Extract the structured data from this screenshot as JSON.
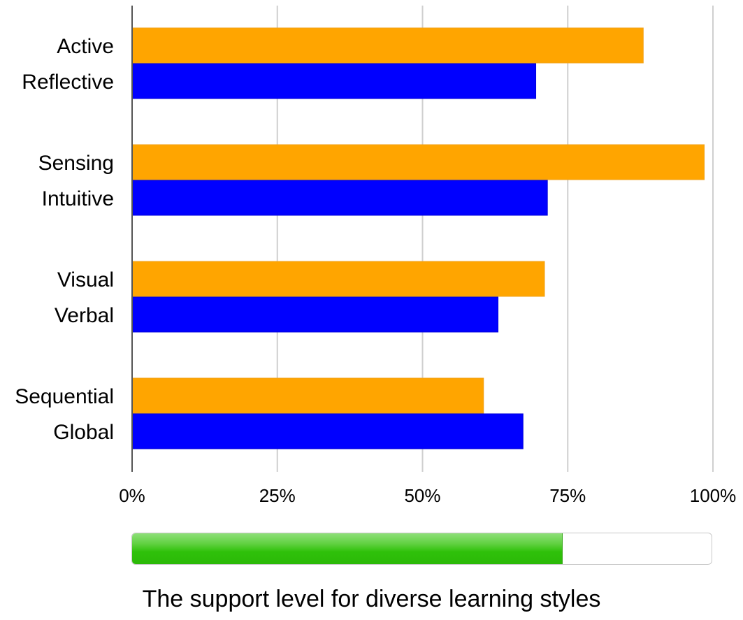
{
  "chart_data": {
    "type": "bar",
    "orientation": "horizontal",
    "groups": [
      {
        "bars": [
          {
            "label": "Active",
            "value": 88,
            "color": "#FFA500"
          },
          {
            "label": "Reflective",
            "value": 69.5,
            "color": "#0000FF"
          }
        ]
      },
      {
        "bars": [
          {
            "label": "Sensing",
            "value": 98.5,
            "color": "#FFA500"
          },
          {
            "label": "Intuitive",
            "value": 71.5,
            "color": "#0000FF"
          }
        ]
      },
      {
        "bars": [
          {
            "label": "Visual",
            "value": 71,
            "color": "#FFA500"
          },
          {
            "label": "Verbal",
            "value": 63,
            "color": "#0000FF"
          }
        ]
      },
      {
        "bars": [
          {
            "label": "Sequential",
            "value": 60.5,
            "color": "#FFA500"
          },
          {
            "label": "Global",
            "value": 67.3,
            "color": "#0000FF"
          }
        ]
      }
    ],
    "xlim": [
      0,
      100
    ],
    "xticks": [
      "0%",
      "25%",
      "50%",
      "75%",
      "100%"
    ],
    "grid": true
  },
  "progress": {
    "fraction": 0.742,
    "fill_color": "#2FC10A"
  },
  "caption": "The support level for diverse learning styles"
}
